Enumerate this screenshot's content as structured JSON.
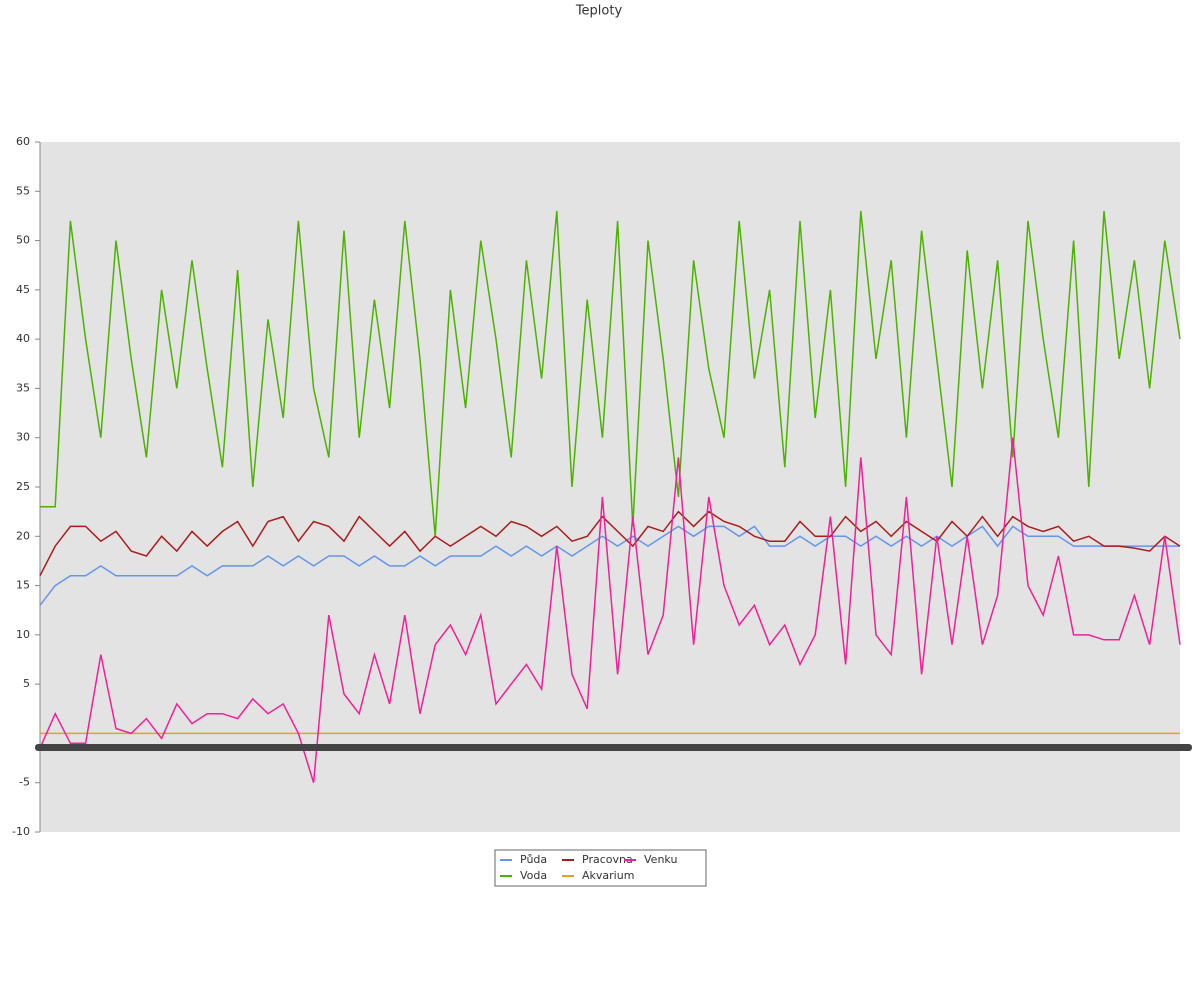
{
  "chart_data": {
    "type": "line",
    "title": "Teploty",
    "ylim": [
      -10,
      60
    ],
    "yticks": [
      -10,
      -5,
      5,
      10,
      15,
      20,
      25,
      30,
      35,
      40,
      45,
      50,
      55,
      60
    ],
    "series": [
      {
        "name": "Půda",
        "color": "#6495ed",
        "values": [
          13,
          15,
          16,
          16,
          17,
          16,
          16,
          16,
          16,
          16,
          17,
          16,
          17,
          17,
          17,
          18,
          17,
          18,
          17,
          18,
          18,
          17,
          18,
          17,
          17,
          18,
          17,
          18,
          18,
          18,
          19,
          18,
          19,
          18,
          19,
          18,
          19,
          20,
          19,
          20,
          19,
          20,
          21,
          20,
          21,
          21,
          20,
          21,
          19,
          19,
          20,
          19,
          20,
          20,
          19,
          20,
          19,
          20,
          19,
          20,
          19,
          20,
          21,
          19,
          21,
          20,
          20,
          20,
          19,
          19,
          19,
          19,
          19,
          19,
          19,
          19
        ]
      },
      {
        "name": "Voda",
        "color": "#4cb200",
        "values": [
          23,
          23,
          52,
          40,
          30,
          50,
          38,
          28,
          45,
          35,
          48,
          37,
          27,
          47,
          25,
          42,
          32,
          52,
          35,
          28,
          51,
          30,
          44,
          33,
          52,
          38,
          20,
          45,
          33,
          50,
          40,
          28,
          48,
          36,
          53,
          25,
          44,
          30,
          52,
          21,
          50,
          38,
          24,
          48,
          37,
          30,
          52,
          36,
          45,
          27,
          52,
          32,
          45,
          25,
          53,
          38,
          48,
          30,
          51,
          38,
          25,
          49,
          35,
          48,
          28,
          52,
          40,
          30,
          50,
          25,
          53,
          38,
          48,
          35,
          50,
          40
        ]
      },
      {
        "name": "Pracovna",
        "color": "#aa1c1c",
        "values": [
          16,
          19,
          21,
          21,
          19.5,
          20.5,
          18.5,
          18,
          20,
          18.5,
          20.5,
          19,
          20.5,
          21.5,
          19,
          21.5,
          22,
          19.5,
          21.5,
          21,
          19.5,
          22,
          20.5,
          19,
          20.5,
          18.5,
          20,
          19,
          20,
          21,
          20,
          21.5,
          21,
          20,
          21,
          19.5,
          20,
          22,
          20.5,
          19,
          21,
          20.5,
          22.5,
          21,
          22.5,
          21.5,
          21,
          20,
          19.5,
          19.5,
          21.5,
          20,
          20,
          22,
          20.5,
          21.5,
          20,
          21.5,
          20.5,
          19.5,
          21.5,
          20,
          22,
          20,
          22,
          21,
          20.5,
          21,
          19.5,
          20,
          19,
          19,
          18.8,
          18.5,
          20,
          19
        ]
      },
      {
        "name": "Akvarium",
        "color": "#e8a020",
        "values": [
          0,
          0,
          0,
          0,
          0,
          0,
          0,
          0,
          0,
          0,
          0,
          0,
          0,
          0,
          0,
          0,
          0,
          0,
          0,
          0,
          0,
          0,
          0,
          0,
          0,
          0,
          0,
          0,
          0,
          0,
          0,
          0,
          0,
          0,
          0,
          0,
          0,
          0,
          0,
          0,
          0,
          0,
          0,
          0,
          0,
          0,
          0,
          0,
          0,
          0,
          0,
          0,
          0,
          0,
          0,
          0,
          0,
          0,
          0,
          0,
          0,
          0,
          0,
          0,
          0,
          0,
          0,
          0,
          0,
          0,
          0,
          0,
          0,
          0,
          0,
          0
        ]
      },
      {
        "name": "Venku",
        "color": "#f0209a",
        "values": [
          -1.5,
          2,
          -1,
          -1,
          8,
          0.5,
          0,
          1.5,
          -0.5,
          3,
          1,
          2,
          2,
          1.5,
          3.5,
          2,
          3,
          0,
          -5,
          12,
          4,
          2,
          8,
          3,
          12,
          2,
          9,
          11,
          8,
          12,
          3,
          5,
          7,
          4.5,
          19,
          6,
          2.5,
          24,
          6,
          22,
          8,
          12,
          28,
          9,
          24,
          15,
          11,
          13,
          9,
          11,
          7,
          10,
          22,
          7,
          28,
          10,
          8,
          24,
          6,
          20,
          9,
          20,
          9,
          14,
          30,
          15,
          12,
          18,
          10,
          10,
          9.5,
          9.5,
          14,
          9,
          20,
          9
        ]
      }
    ]
  }
}
